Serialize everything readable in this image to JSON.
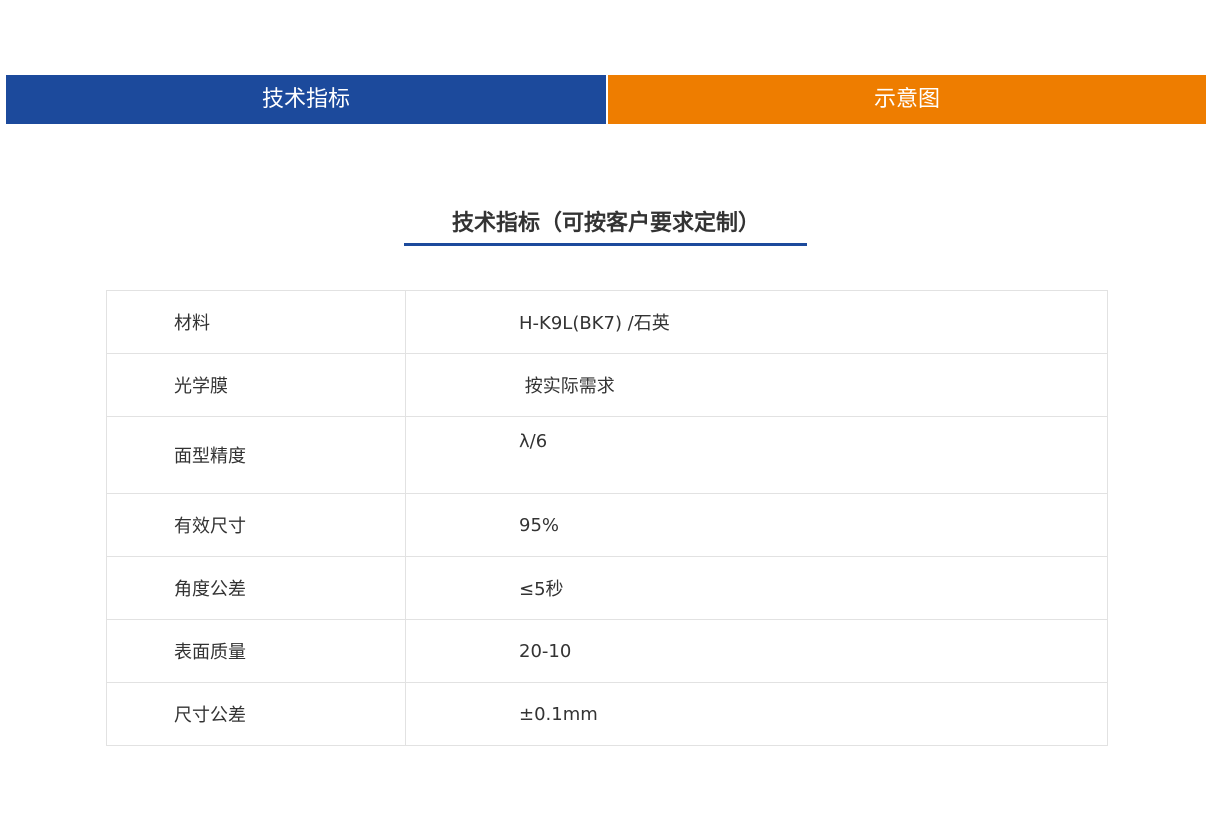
{
  "tabs": [
    {
      "label": "技术指标",
      "color": "#1c4a9c"
    },
    {
      "label": "示意图",
      "color": "#ee7d00"
    }
  ],
  "section_title": "技术指标（可按客户要求定制）",
  "specs": [
    {
      "label": "材料",
      "value": "H-K9L(BK7) /石英"
    },
    {
      "label": "光学膜",
      "value": " 按实际需求"
    },
    {
      "label": "面型精度",
      "value": "λ/6"
    },
    {
      "label": "有效尺寸",
      "value": "95%"
    },
    {
      "label": "角度公差",
      "value": "≤5秒"
    },
    {
      "label": "表面质量",
      "value": "20-10"
    },
    {
      "label": "尺寸公差",
      "value": "±0.1mm"
    }
  ]
}
